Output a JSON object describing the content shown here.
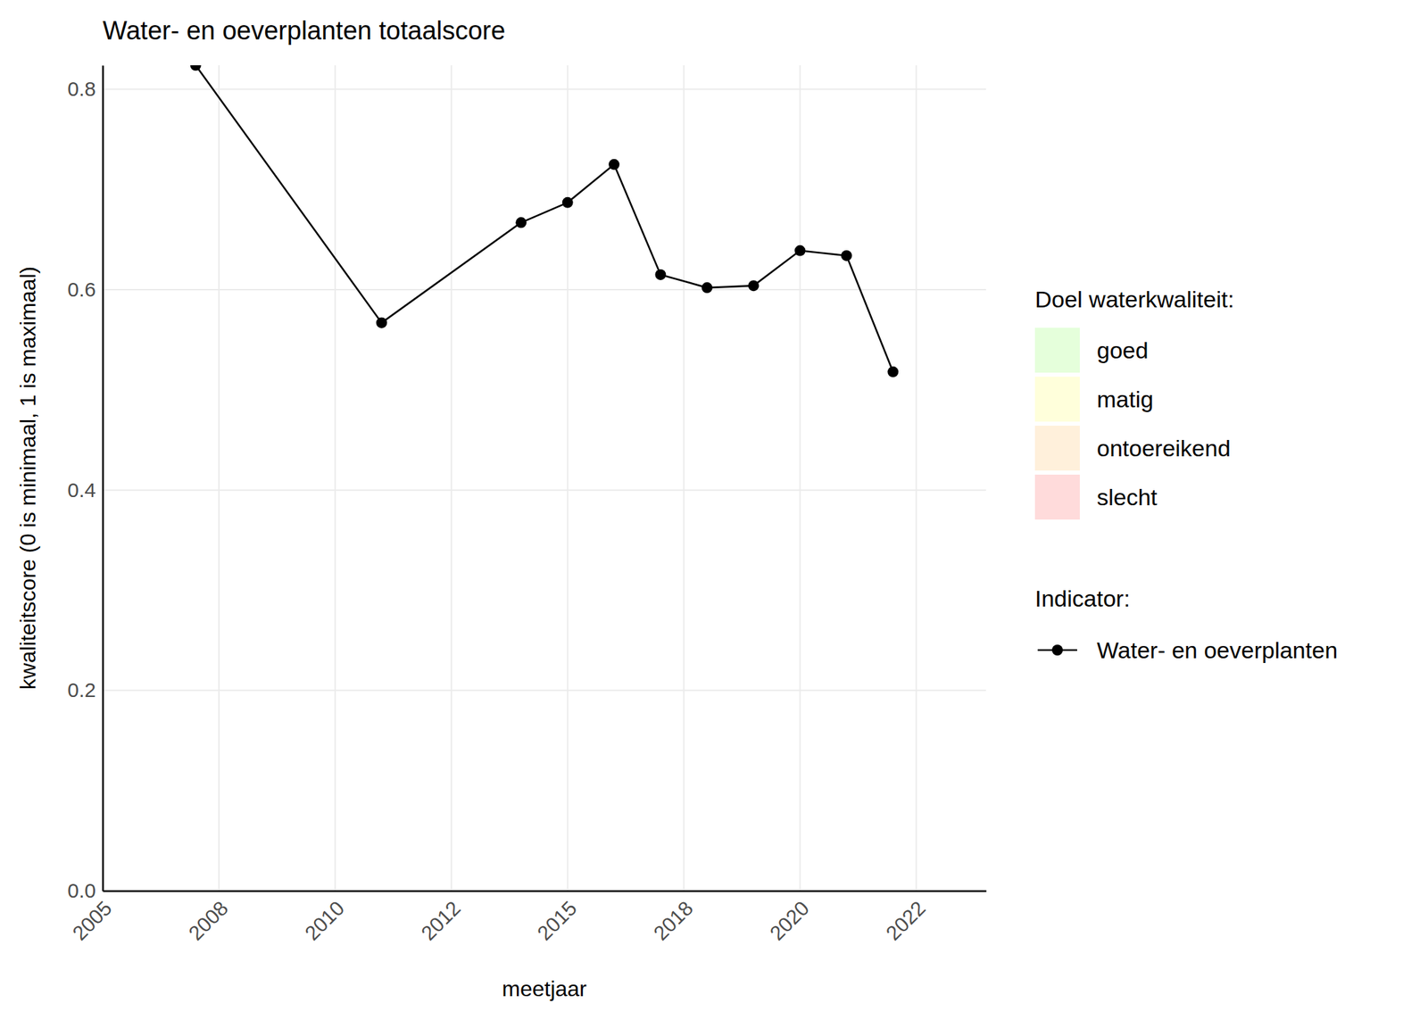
{
  "chart_data": {
    "type": "line",
    "title": "Water- en oeverplanten totaalscore",
    "x_label": "meetjaar",
    "y_label": "kwaliteitscore (0 is minimaal, 1 is maximaal)",
    "x": [
      2007,
      2011,
      2014,
      2015,
      2016,
      2017,
      2018,
      2019,
      2020,
      2021,
      2022
    ],
    "series": [
      {
        "name": "Water- en oeverplanten",
        "color": "#000000",
        "marker": "circle",
        "line_style": "solid",
        "values": [
          0.824,
          0.567,
          0.667,
          0.687,
          0.725,
          0.615,
          0.602,
          0.604,
          0.639,
          0.634,
          0.518
        ]
      }
    ],
    "xlim": [
      2005,
      2024
    ],
    "xticks": [
      {
        "value": 2005,
        "label": "2005"
      },
      {
        "value": 2007.5,
        "label": "2008"
      },
      {
        "value": 2010,
        "label": "2010"
      },
      {
        "value": 2012.5,
        "label": "2012"
      },
      {
        "value": 2015,
        "label": "2015"
      },
      {
        "value": 2017.5,
        "label": "2018"
      },
      {
        "value": 2020,
        "label": "2020"
      },
      {
        "value": 2022.5,
        "label": "2022"
      }
    ],
    "ylim": [
      0,
      0.824
    ],
    "yticks": [
      {
        "value": 0,
        "label": "0.0"
      },
      0.2,
      0.4,
      0.6,
      0.8
    ],
    "grid": true,
    "legend": "right",
    "legend_title": "Indicator:",
    "quality_legend": {
      "title": "Doel waterkwaliteit:",
      "items": [
        {
          "name": "goed",
          "color": "#e5ffdb"
        },
        {
          "name": "matig",
          "color": "#ffffdb"
        },
        {
          "name": "ontoereikend",
          "color": "#fff0db"
        },
        {
          "name": "slecht",
          "color": "#ffdbdb"
        }
      ]
    }
  }
}
